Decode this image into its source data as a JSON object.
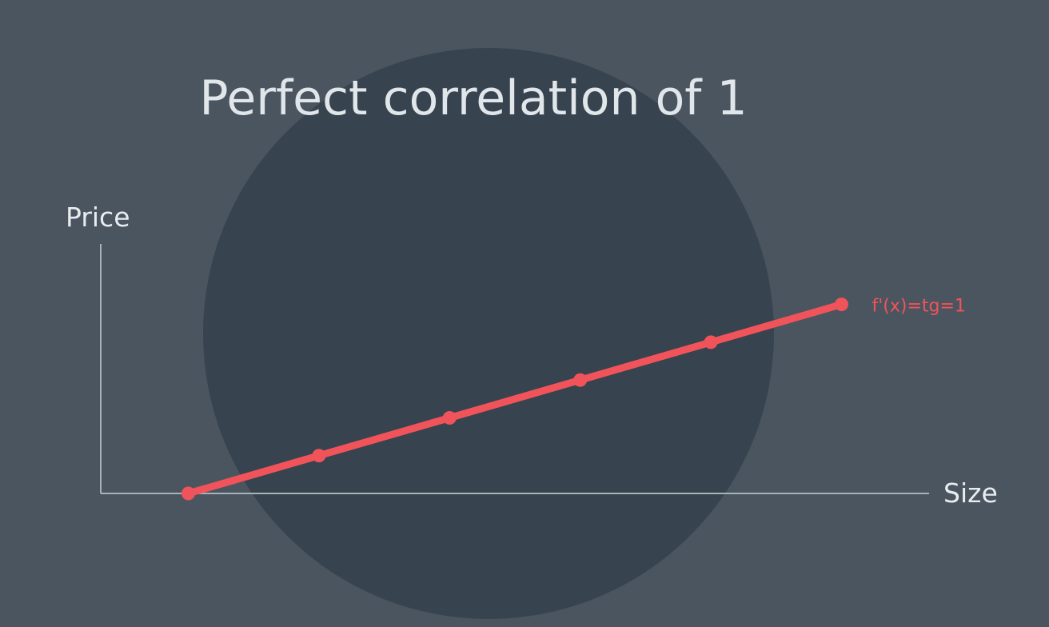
{
  "colors": {
    "background": "#4a5560",
    "circle": "#37434e",
    "axis": "#aab2b9",
    "line": "#f0545a",
    "text": "#e1e6ea"
  },
  "chart_data": {
    "type": "line",
    "title": "Perfect correlation of 1",
    "xlabel": "Size",
    "ylabel": "Price",
    "x": [
      0,
      1,
      2,
      3,
      4,
      5
    ],
    "series": [
      {
        "values": [
          0,
          1,
          2,
          3,
          4,
          5
        ]
      }
    ],
    "xlim": [
      -0.67,
      5.67
    ],
    "ylim": [
      0,
      6.6
    ],
    "grid": false,
    "annotations": [
      {
        "text": "f'(x)=tg=1",
        "x": 5,
        "y": 5
      }
    ]
  }
}
